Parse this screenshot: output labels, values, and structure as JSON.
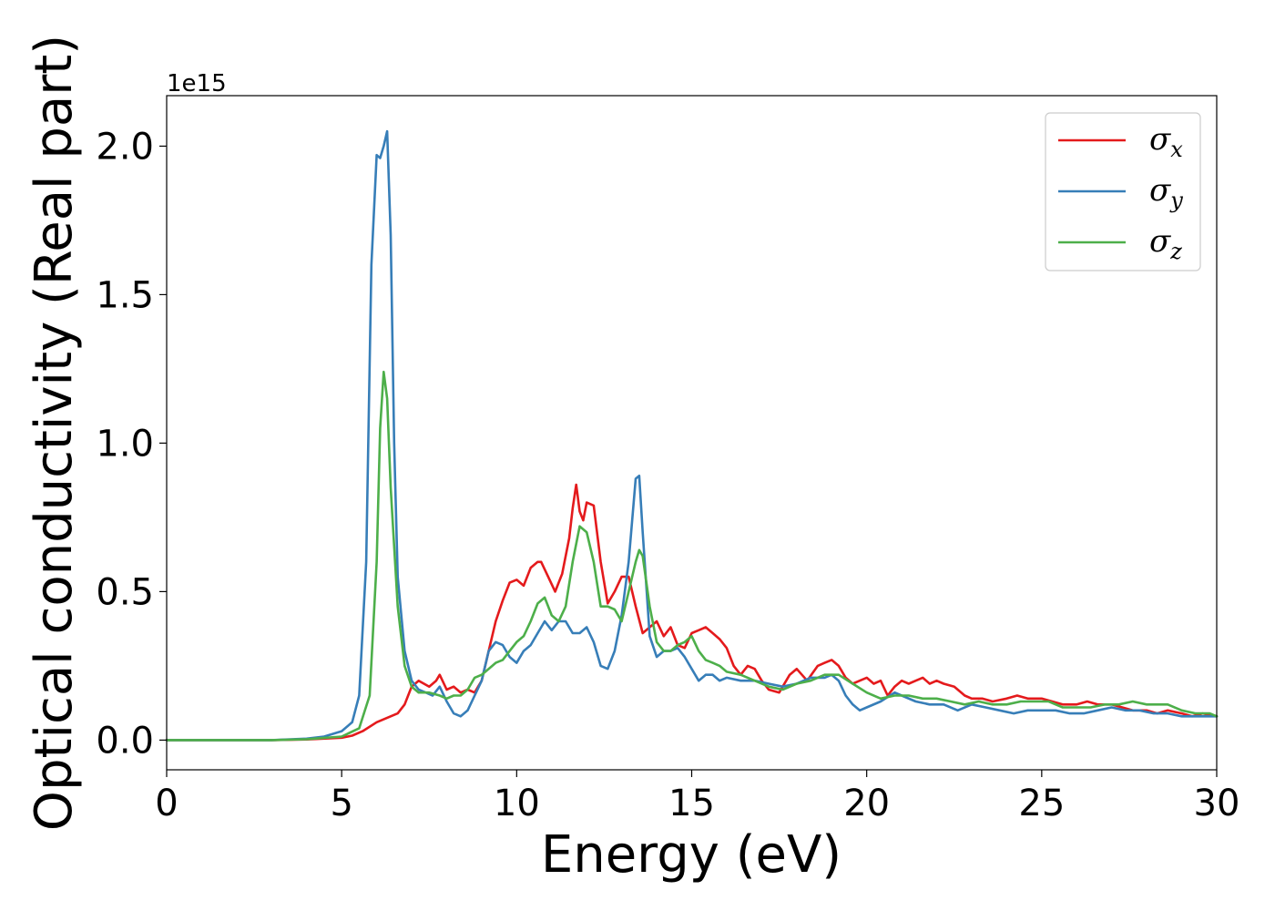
{
  "chart_data": {
    "type": "line",
    "xlabel": "Energy (eV)",
    "ylabel": "Optical conductivity (Real part)",
    "y_offset_label": "1e15",
    "xlim": [
      0,
      30
    ],
    "ylim": [
      -0.1,
      2.17
    ],
    "xticks": [
      0,
      5,
      10,
      15,
      20,
      25,
      30
    ],
    "yticks": [
      0.0,
      0.5,
      1.0,
      1.5,
      2.0
    ],
    "xtick_labels": [
      "0",
      "5",
      "10",
      "15",
      "20",
      "25",
      "30"
    ],
    "ytick_labels": [
      "0.0",
      "0.5",
      "1.0",
      "1.5",
      "2.0"
    ],
    "grid": false,
    "legend_position": "top-right",
    "series": [
      {
        "name": "σ",
        "subscript": "x",
        "color": "#e41a1c",
        "x": [
          0,
          3,
          4,
          5,
          5.3,
          5.6,
          6.0,
          6.4,
          6.6,
          6.8,
          7.0,
          7.2,
          7.5,
          7.7,
          7.8,
          8.0,
          8.2,
          8.4,
          8.6,
          8.8,
          9.0,
          9.2,
          9.4,
          9.6,
          9.8,
          10.0,
          10.2,
          10.4,
          10.6,
          10.7,
          10.9,
          11.1,
          11.3,
          11.5,
          11.6,
          11.7,
          11.8,
          11.9,
          12.0,
          12.2,
          12.4,
          12.6,
          12.8,
          13.0,
          13.2,
          13.4,
          13.6,
          13.8,
          14.0,
          14.2,
          14.4,
          14.6,
          14.8,
          15.0,
          15.2,
          15.4,
          15.6,
          15.8,
          16.0,
          16.2,
          16.4,
          16.6,
          16.8,
          17.0,
          17.2,
          17.5,
          17.8,
          18.0,
          18.3,
          18.6,
          18.8,
          19.0,
          19.2,
          19.4,
          19.6,
          19.8,
          20.0,
          20.2,
          20.4,
          20.6,
          20.8,
          21.0,
          21.2,
          21.4,
          21.6,
          21.8,
          22.0,
          22.2,
          22.5,
          22.8,
          23.0,
          23.3,
          23.6,
          24.0,
          24.3,
          24.6,
          25.0,
          25.3,
          25.6,
          26.0,
          26.3,
          26.6,
          27.0,
          27.3,
          27.6,
          28.0,
          28.3,
          28.6,
          29.0,
          29.3,
          29.6,
          30.0
        ],
        "y": [
          0.0,
          0.0,
          0.002,
          0.008,
          0.015,
          0.03,
          0.06,
          0.08,
          0.09,
          0.12,
          0.18,
          0.2,
          0.18,
          0.2,
          0.22,
          0.17,
          0.18,
          0.16,
          0.17,
          0.16,
          0.2,
          0.3,
          0.4,
          0.47,
          0.53,
          0.54,
          0.52,
          0.58,
          0.6,
          0.6,
          0.55,
          0.5,
          0.56,
          0.68,
          0.78,
          0.86,
          0.77,
          0.74,
          0.8,
          0.79,
          0.6,
          0.46,
          0.5,
          0.55,
          0.55,
          0.45,
          0.36,
          0.38,
          0.4,
          0.35,
          0.38,
          0.32,
          0.31,
          0.36,
          0.37,
          0.38,
          0.36,
          0.34,
          0.31,
          0.25,
          0.22,
          0.25,
          0.24,
          0.2,
          0.17,
          0.16,
          0.22,
          0.24,
          0.2,
          0.25,
          0.26,
          0.27,
          0.25,
          0.21,
          0.19,
          0.2,
          0.21,
          0.19,
          0.2,
          0.15,
          0.18,
          0.2,
          0.19,
          0.2,
          0.21,
          0.19,
          0.2,
          0.19,
          0.18,
          0.15,
          0.14,
          0.14,
          0.13,
          0.14,
          0.15,
          0.14,
          0.14,
          0.13,
          0.12,
          0.12,
          0.13,
          0.12,
          0.12,
          0.11,
          0.1,
          0.1,
          0.09,
          0.1,
          0.09,
          0.08,
          0.09,
          0.08
        ]
      },
      {
        "name": "σ",
        "subscript": "y",
        "color": "#377eb8",
        "x": [
          0,
          3,
          4,
          4.5,
          5,
          5.3,
          5.5,
          5.7,
          5.85,
          6.0,
          6.1,
          6.2,
          6.3,
          6.4,
          6.5,
          6.6,
          6.8,
          7.0,
          7.2,
          7.4,
          7.6,
          7.8,
          8.0,
          8.2,
          8.4,
          8.6,
          8.8,
          9.0,
          9.2,
          9.4,
          9.6,
          9.8,
          10.0,
          10.2,
          10.4,
          10.6,
          10.8,
          11.0,
          11.2,
          11.4,
          11.6,
          11.8,
          12.0,
          12.2,
          12.4,
          12.6,
          12.8,
          13.0,
          13.2,
          13.4,
          13.5,
          13.6,
          13.8,
          14.0,
          14.2,
          14.4,
          14.6,
          14.8,
          15.0,
          15.2,
          15.4,
          15.6,
          15.8,
          16.0,
          16.4,
          16.8,
          17.2,
          17.6,
          18.0,
          18.4,
          18.8,
          19.0,
          19.2,
          19.4,
          19.6,
          19.8,
          20.0,
          20.4,
          20.8,
          21.0,
          21.4,
          21.8,
          22.2,
          22.6,
          23.0,
          23.4,
          23.8,
          24.2,
          24.6,
          25.0,
          25.4,
          25.8,
          26.2,
          26.6,
          27.0,
          27.4,
          27.8,
          28.2,
          28.6,
          29.0,
          29.4,
          29.8,
          30.0
        ],
        "y": [
          0.0,
          0.0,
          0.005,
          0.012,
          0.03,
          0.06,
          0.15,
          0.6,
          1.6,
          1.97,
          1.96,
          2.0,
          2.05,
          1.7,
          1.0,
          0.55,
          0.3,
          0.2,
          0.17,
          0.16,
          0.15,
          0.18,
          0.13,
          0.09,
          0.08,
          0.1,
          0.15,
          0.2,
          0.3,
          0.33,
          0.32,
          0.28,
          0.26,
          0.3,
          0.32,
          0.36,
          0.4,
          0.37,
          0.4,
          0.4,
          0.36,
          0.36,
          0.38,
          0.33,
          0.25,
          0.24,
          0.3,
          0.42,
          0.6,
          0.88,
          0.89,
          0.7,
          0.35,
          0.28,
          0.3,
          0.3,
          0.31,
          0.28,
          0.24,
          0.2,
          0.22,
          0.22,
          0.2,
          0.21,
          0.2,
          0.2,
          0.19,
          0.18,
          0.19,
          0.21,
          0.21,
          0.22,
          0.2,
          0.15,
          0.12,
          0.1,
          0.11,
          0.13,
          0.16,
          0.15,
          0.13,
          0.12,
          0.12,
          0.1,
          0.12,
          0.11,
          0.1,
          0.09,
          0.1,
          0.1,
          0.1,
          0.09,
          0.09,
          0.1,
          0.11,
          0.1,
          0.1,
          0.09,
          0.09,
          0.08,
          0.08,
          0.08,
          0.08
        ]
      },
      {
        "name": "σ",
        "subscript": "z",
        "color": "#4daf4a",
        "x": [
          0,
          3,
          4,
          5,
          5.5,
          5.8,
          6.0,
          6.1,
          6.2,
          6.3,
          6.4,
          6.6,
          6.8,
          7.0,
          7.2,
          7.5,
          7.8,
          8.0,
          8.2,
          8.4,
          8.6,
          8.8,
          9.0,
          9.2,
          9.4,
          9.6,
          9.8,
          10.0,
          10.2,
          10.4,
          10.6,
          10.8,
          11.0,
          11.2,
          11.4,
          11.6,
          11.8,
          12.0,
          12.2,
          12.4,
          12.6,
          12.8,
          13.0,
          13.2,
          13.4,
          13.5,
          13.6,
          13.8,
          14.0,
          14.2,
          14.4,
          14.6,
          14.8,
          15.0,
          15.2,
          15.4,
          15.6,
          15.8,
          16.0,
          16.4,
          16.8,
          17.2,
          17.6,
          18.0,
          18.4,
          18.8,
          19.2,
          19.6,
          20.0,
          20.4,
          20.8,
          21.2,
          21.6,
          22.0,
          22.4,
          22.8,
          23.2,
          23.6,
          24.0,
          24.4,
          24.8,
          25.2,
          25.6,
          26.0,
          26.4,
          26.8,
          27.2,
          27.6,
          28.0,
          28.3,
          28.6,
          29.0,
          29.4,
          29.8,
          30.0
        ],
        "y": [
          0.0,
          0.0,
          0.003,
          0.012,
          0.04,
          0.15,
          0.6,
          1.05,
          1.24,
          1.15,
          0.85,
          0.45,
          0.25,
          0.18,
          0.16,
          0.16,
          0.15,
          0.14,
          0.15,
          0.15,
          0.17,
          0.21,
          0.22,
          0.24,
          0.26,
          0.27,
          0.3,
          0.33,
          0.35,
          0.4,
          0.46,
          0.48,
          0.42,
          0.4,
          0.45,
          0.6,
          0.72,
          0.7,
          0.6,
          0.45,
          0.45,
          0.44,
          0.4,
          0.5,
          0.6,
          0.64,
          0.62,
          0.45,
          0.33,
          0.3,
          0.3,
          0.32,
          0.33,
          0.35,
          0.3,
          0.27,
          0.26,
          0.25,
          0.23,
          0.22,
          0.2,
          0.18,
          0.17,
          0.19,
          0.2,
          0.22,
          0.22,
          0.19,
          0.16,
          0.14,
          0.15,
          0.15,
          0.14,
          0.14,
          0.13,
          0.12,
          0.13,
          0.12,
          0.12,
          0.13,
          0.13,
          0.13,
          0.11,
          0.11,
          0.11,
          0.12,
          0.12,
          0.13,
          0.12,
          0.12,
          0.12,
          0.1,
          0.09,
          0.09,
          0.08
        ]
      }
    ]
  }
}
